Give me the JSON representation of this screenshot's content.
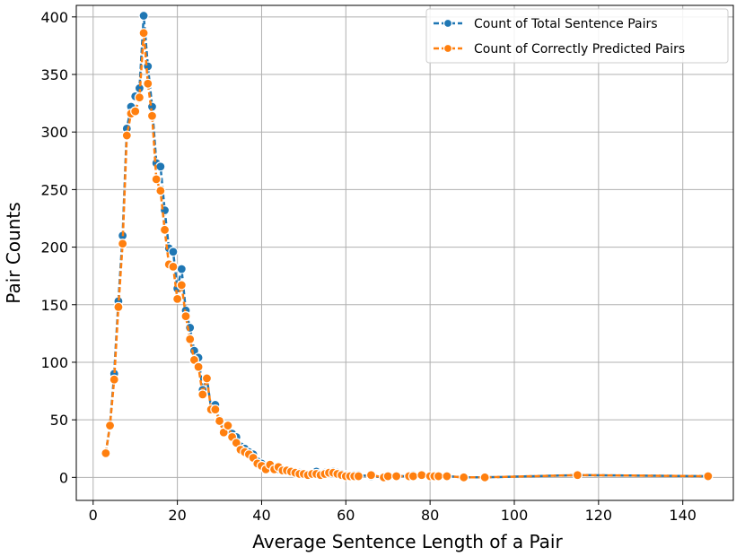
{
  "chart_data": {
    "type": "line",
    "title": "",
    "xlabel": "Average Sentence Length of a Pair",
    "ylabel": "Pair Counts",
    "xlim": [
      -4,
      152
    ],
    "ylim": [
      -20,
      410
    ],
    "xticks": [
      0,
      20,
      40,
      60,
      80,
      100,
      120,
      140
    ],
    "yticks": [
      0,
      50,
      100,
      150,
      200,
      250,
      300,
      350,
      400
    ],
    "grid": true,
    "legend_position": "top-right",
    "series": [
      {
        "name": "Count of Total Sentence Pairs",
        "color": "#1f77b4",
        "x": [
          3,
          4,
          5,
          6,
          7,
          8,
          9,
          10,
          11,
          12,
          13,
          14,
          15,
          16,
          17,
          18,
          19,
          20,
          21,
          22,
          23,
          24,
          25,
          26,
          27,
          28,
          29,
          30,
          31,
          32,
          33,
          34,
          35,
          36,
          37,
          38,
          39,
          40,
          41,
          42,
          43,
          44,
          45,
          46,
          47,
          48,
          49,
          50,
          51,
          52,
          53,
          54,
          55,
          56,
          57,
          58,
          59,
          60,
          61,
          62,
          63,
          66,
          69,
          70,
          72,
          75,
          76,
          78,
          80,
          81,
          82,
          84,
          88,
          93,
          115,
          146
        ],
        "y": [
          21,
          45,
          90,
          153,
          210,
          303,
          322,
          331,
          338,
          401,
          357,
          322,
          273,
          270,
          232,
          199,
          196,
          164,
          181,
          145,
          130,
          110,
          104,
          76,
          86,
          60,
          63,
          50,
          40,
          42,
          38,
          35,
          27,
          25,
          22,
          20,
          14,
          12,
          8,
          10,
          9,
          7,
          6,
          6,
          5,
          4,
          4,
          3,
          2,
          3,
          5,
          3,
          4,
          4,
          5,
          4,
          3,
          2,
          1,
          2,
          2,
          1,
          0,
          1,
          1,
          1,
          2,
          2,
          1,
          1,
          1,
          1,
          0,
          0,
          2,
          1
        ]
      },
      {
        "name": "Count of Correctly Predicted Pairs",
        "color": "#ff7f0e",
        "x": [
          3,
          4,
          5,
          6,
          7,
          8,
          9,
          10,
          11,
          12,
          13,
          14,
          15,
          16,
          17,
          18,
          19,
          20,
          21,
          22,
          23,
          24,
          25,
          26,
          27,
          28,
          29,
          30,
          31,
          32,
          33,
          34,
          35,
          36,
          37,
          38,
          39,
          40,
          41,
          42,
          43,
          44,
          45,
          46,
          47,
          48,
          49,
          50,
          51,
          52,
          53,
          54,
          55,
          56,
          57,
          58,
          59,
          60,
          61,
          62,
          63,
          66,
          69,
          70,
          72,
          75,
          76,
          78,
          80,
          81,
          82,
          84,
          88,
          93,
          115,
          146
        ],
        "y": [
          21,
          45,
          85,
          148,
          203,
          297,
          316,
          318,
          330,
          386,
          342,
          314,
          259,
          249,
          215,
          185,
          183,
          155,
          167,
          140,
          120,
          102,
          96,
          72,
          86,
          59,
          59,
          49,
          39,
          45,
          35,
          30,
          24,
          22,
          20,
          17,
          12,
          10,
          7,
          11,
          7,
          9,
          6,
          6,
          5,
          4,
          3,
          3,
          2,
          3,
          3,
          2,
          3,
          4,
          4,
          3,
          2,
          1,
          1,
          1,
          1,
          2,
          0,
          1,
          1,
          1,
          1,
          2,
          1,
          1,
          1,
          1,
          0,
          0,
          2,
          1
        ]
      }
    ]
  }
}
